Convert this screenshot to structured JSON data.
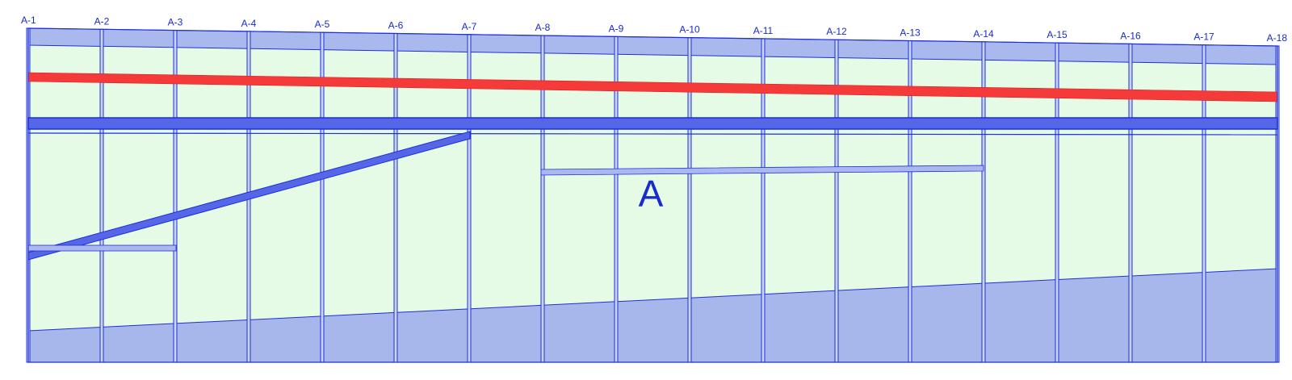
{
  "drawing": {
    "axes": [
      "A-1",
      "A-2",
      "A-3",
      "A-4",
      "A-5",
      "A-6",
      "A-7",
      "A-8",
      "A-9",
      "A-10",
      "A-11",
      "A-12",
      "A-13",
      "A-14",
      "A-15",
      "A-16",
      "A-17",
      "A-18"
    ],
    "zone_label": "A",
    "colors": {
      "panel_fill": "#e6fbe6",
      "band_fill": "#a9b9ee",
      "bottom_band_fill": "#a7b7ec",
      "frame_stroke": "#1f2fd6",
      "stud_fill": "#c8d4f6",
      "beam_fill": "#5566e6",
      "beam_stroke": "#1e2ee0",
      "accent_red": "#f53a3a",
      "label_color": "#1a2acc"
    }
  }
}
